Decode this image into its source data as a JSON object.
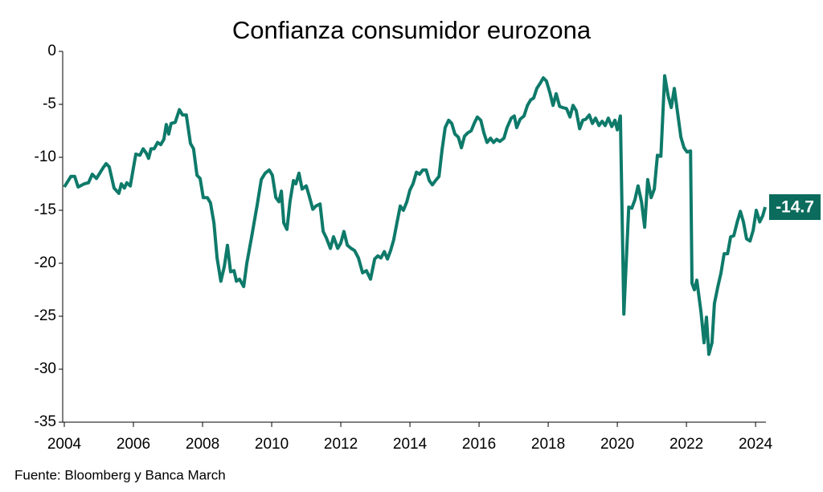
{
  "chart_data": {
    "type": "line",
    "title": "Confianza consumidor eurozona",
    "source": "Fuente: Bloomberg y Banca March",
    "xlim": [
      2004,
      2024.3
    ],
    "xticks": [
      2004,
      2006,
      2008,
      2010,
      2012,
      2014,
      2016,
      2018,
      2020,
      2022,
      2024
    ],
    "ylim": [
      -35,
      0
    ],
    "yticks": [
      0,
      -5,
      -10,
      -15,
      -20,
      -25,
      -30,
      -35
    ],
    "grid": false,
    "x": [
      2004.0,
      2004.19,
      2004.3,
      2004.4,
      2004.58,
      2004.7,
      2004.81,
      2004.93,
      2005.12,
      2005.21,
      2005.3,
      2005.44,
      2005.58,
      2005.65,
      2005.74,
      2005.81,
      2005.91,
      2006.0,
      2006.07,
      2006.19,
      2006.28,
      2006.37,
      2006.44,
      2006.51,
      2006.6,
      2006.7,
      2006.79,
      2006.88,
      2006.95,
      2007.02,
      2007.09,
      2007.21,
      2007.33,
      2007.42,
      2007.53,
      2007.65,
      2007.74,
      2007.84,
      2007.93,
      2008.02,
      2008.14,
      2008.23,
      2008.33,
      2008.42,
      2008.53,
      2008.63,
      2008.72,
      2008.81,
      2008.91,
      2008.98,
      2009.07,
      2009.19,
      2009.28,
      2009.42,
      2009.58,
      2009.7,
      2009.81,
      2009.93,
      2010.02,
      2010.12,
      2010.21,
      2010.28,
      2010.35,
      2010.44,
      2010.53,
      2010.63,
      2010.7,
      2010.79,
      2010.88,
      2011.0,
      2011.09,
      2011.19,
      2011.28,
      2011.4,
      2011.49,
      2011.58,
      2011.7,
      2011.79,
      2011.91,
      2012.0,
      2012.09,
      2012.19,
      2012.3,
      2012.4,
      2012.51,
      2012.63,
      2012.74,
      2012.86,
      2012.98,
      2013.07,
      2013.16,
      2013.26,
      2013.35,
      2013.44,
      2013.53,
      2013.63,
      2013.72,
      2013.81,
      2013.91,
      2014.0,
      2014.09,
      2014.19,
      2014.28,
      2014.37,
      2014.47,
      2014.56,
      2014.65,
      2014.74,
      2014.84,
      2014.93,
      2015.02,
      2015.12,
      2015.21,
      2015.3,
      2015.4,
      2015.49,
      2015.58,
      2015.67,
      2015.77,
      2015.86,
      2015.95,
      2016.05,
      2016.14,
      2016.23,
      2016.33,
      2016.42,
      2016.51,
      2016.6,
      2016.72,
      2016.81,
      2016.93,
      2017.02,
      2017.09,
      2017.19,
      2017.3,
      2017.4,
      2017.49,
      2017.58,
      2017.67,
      2017.77,
      2017.86,
      2017.95,
      2018.05,
      2018.14,
      2018.23,
      2018.33,
      2018.42,
      2018.53,
      2018.63,
      2018.72,
      2018.81,
      2018.91,
      2019.0,
      2019.09,
      2019.19,
      2019.28,
      2019.37,
      2019.47,
      2019.56,
      2019.65,
      2019.74,
      2019.84,
      2019.93,
      2020.0,
      2020.09,
      2020.19,
      2020.33,
      2020.42,
      2020.51,
      2020.6,
      2020.7,
      2020.79,
      2020.88,
      2020.98,
      2021.07,
      2021.16,
      2021.26,
      2021.37,
      2021.47,
      2021.56,
      2021.65,
      2021.74,
      2021.84,
      2021.93,
      2022.02,
      2022.12,
      2022.16,
      2022.23,
      2022.3,
      2022.42,
      2022.51,
      2022.58,
      2022.65,
      2022.74,
      2022.81,
      2022.91,
      2023.0,
      2023.09,
      2023.19,
      2023.28,
      2023.37,
      2023.47,
      2023.56,
      2023.65,
      2023.74,
      2023.84,
      2023.93,
      2024.02,
      2024.12,
      2024.21,
      2024.28
    ],
    "series": [
      {
        "color": "#0e7a6a",
        "values": [
          -12.8,
          -11.8,
          -11.8,
          -12.8,
          -12.5,
          -12.4,
          -11.6,
          -12.0,
          -11.0,
          -10.6,
          -10.9,
          -12.9,
          -13.4,
          -12.5,
          -12.9,
          -12.4,
          -12.7,
          -11.0,
          -9.7,
          -9.8,
          -9.2,
          -9.6,
          -10.1,
          -9.2,
          -9.2,
          -8.6,
          -8.8,
          -8.3,
          -6.9,
          -7.8,
          -6.8,
          -6.7,
          -5.5,
          -6.0,
          -6.0,
          -8.7,
          -9.2,
          -11.7,
          -12.0,
          -13.8,
          -13.8,
          -14.3,
          -16.2,
          -19.5,
          -21.7,
          -20.3,
          -18.3,
          -20.8,
          -20.7,
          -21.7,
          -21.5,
          -22.2,
          -20.0,
          -17.5,
          -14.5,
          -12.1,
          -11.5,
          -11.2,
          -11.7,
          -13.8,
          -14.2,
          -13.2,
          -16.2,
          -16.8,
          -14.2,
          -12.2,
          -12.5,
          -11.5,
          -13.0,
          -12.7,
          -13.7,
          -14.9,
          -14.6,
          -14.4,
          -17.0,
          -17.6,
          -18.6,
          -17.5,
          -18.6,
          -18.1,
          -17.0,
          -18.3,
          -18.6,
          -18.8,
          -19.5,
          -20.9,
          -20.7,
          -21.5,
          -19.6,
          -19.3,
          -19.5,
          -18.9,
          -19.6,
          -18.8,
          -17.8,
          -16.1,
          -14.6,
          -15.0,
          -14.2,
          -13.1,
          -12.5,
          -11.4,
          -11.6,
          -11.2,
          -11.2,
          -12.2,
          -12.6,
          -12.2,
          -11.8,
          -9.3,
          -7.2,
          -6.5,
          -6.8,
          -7.8,
          -8.1,
          -9.1,
          -8.0,
          -7.7,
          -7.5,
          -6.8,
          -6.2,
          -6.5,
          -7.7,
          -8.6,
          -8.2,
          -8.6,
          -8.3,
          -8.5,
          -8.2,
          -7.2,
          -6.3,
          -6.1,
          -7.2,
          -6.4,
          -6.1,
          -5.1,
          -4.6,
          -4.4,
          -3.5,
          -3.0,
          -2.5,
          -2.8,
          -3.9,
          -5.1,
          -4.0,
          -5.2,
          -5.3,
          -5.4,
          -6.2,
          -5.1,
          -5.6,
          -7.3,
          -6.5,
          -6.4,
          -6.0,
          -6.8,
          -6.3,
          -7.0,
          -6.6,
          -7.0,
          -6.3,
          -7.1,
          -6.5,
          -7.4,
          -6.1,
          -24.8,
          -14.7,
          -14.8,
          -14.0,
          -12.7,
          -14.2,
          -16.6,
          -12.1,
          -13.8,
          -13.0,
          -9.8,
          -9.9,
          -2.3,
          -4.2,
          -5.3,
          -3.5,
          -5.7,
          -8.1,
          -9.1,
          -9.5,
          -9.4,
          -21.9,
          -22.5,
          -21.6,
          -24.6,
          -27.5,
          -25.1,
          -28.6,
          -27.5,
          -23.8,
          -22.2,
          -20.9,
          -19.1,
          -19.1,
          -17.5,
          -17.4,
          -16.1,
          -15.1,
          -16.1,
          -17.7,
          -17.9,
          -16.9,
          -15.0,
          -16.1,
          -15.5,
          -14.7
        ]
      }
    ]
  }
}
